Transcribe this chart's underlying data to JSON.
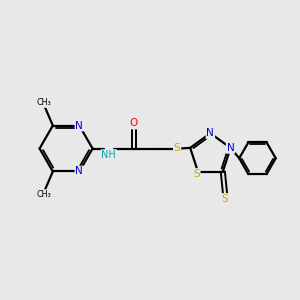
{
  "background_color": "#e8e8e8",
  "bond_color": "#000000",
  "N_color": "#0000cc",
  "O_color": "#ff0000",
  "S_color": "#ccaa00",
  "H_color": "#00aaaa",
  "figsize": [
    3.0,
    3.0
  ],
  "dpi": 100,
  "xlim": [
    0,
    10
  ],
  "ylim": [
    0,
    10
  ]
}
